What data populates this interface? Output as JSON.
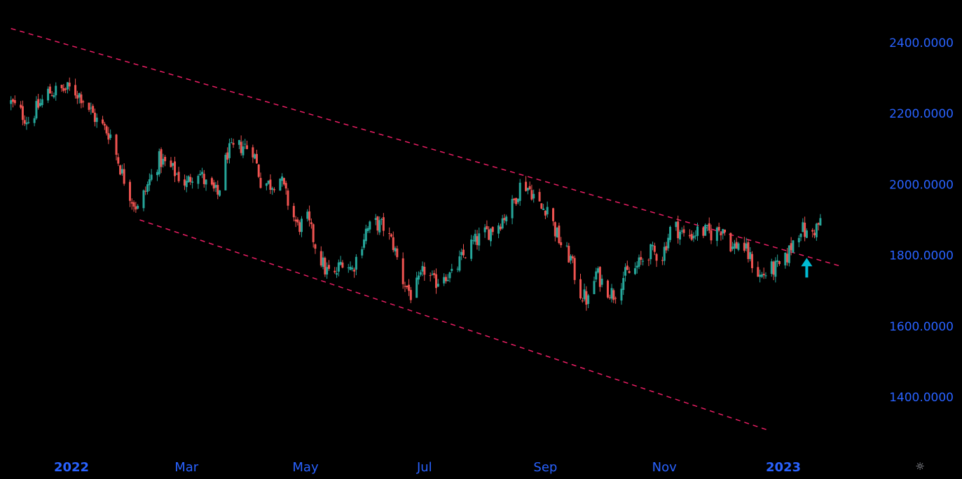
{
  "colors": {
    "background": "#000000",
    "up": "#26a69a",
    "down": "#ef5350",
    "trendline": "#e91e63",
    "axis_text": "#2962ff",
    "marker": "#00bcd4"
  },
  "chart_data": {
    "type": "candlestick",
    "title": "",
    "xlabel": "",
    "ylabel": "",
    "ylim": [
      1290,
      2450
    ],
    "y_ticks": [
      "2400.0000",
      "2200.0000",
      "2000.0000",
      "1800.0000",
      "1600.0000",
      "1400.0000"
    ],
    "y_tick_values": [
      2400,
      2200,
      2000,
      1800,
      1600,
      1400
    ],
    "x_ticks": [
      {
        "label": "2022",
        "date": "2022-01-01",
        "bold": true
      },
      {
        "label": "Mar",
        "date": "2022-03-01",
        "bold": false
      },
      {
        "label": "May",
        "date": "2022-05-01",
        "bold": false
      },
      {
        "label": "Jul",
        "date": "2022-07-01",
        "bold": false
      },
      {
        "label": "Sep",
        "date": "2022-09-01",
        "bold": false
      },
      {
        "label": "Nov",
        "date": "2022-11-01",
        "bold": false
      },
      {
        "label": "2023",
        "date": "2023-01-01",
        "bold": true
      }
    ],
    "price_path": [
      [
        "2021-12-01",
        2230
      ],
      [
        "2021-12-10",
        2180
      ],
      [
        "2021-12-20",
        2260
      ],
      [
        "2022-01-01",
        2270
      ],
      [
        "2022-01-06",
        2250
      ],
      [
        "2022-01-14",
        2180
      ],
      [
        "2022-01-21",
        2140
      ],
      [
        "2022-01-27",
        2030
      ],
      [
        "2022-02-01",
        1960
      ],
      [
        "2022-02-04",
        1930
      ],
      [
        "2022-02-10",
        2010
      ],
      [
        "2022-02-15",
        2070
      ],
      [
        "2022-02-22",
        2040
      ],
      [
        "2022-03-01",
        2000
      ],
      [
        "2022-03-06",
        2050
      ],
      [
        "2022-03-11",
        2000
      ],
      [
        "2022-03-17",
        1970
      ],
      [
        "2022-03-22",
        2090
      ],
      [
        "2022-03-30",
        2110
      ],
      [
        "2022-04-04",
        2100
      ],
      [
        "2022-04-08",
        2010
      ],
      [
        "2022-04-13",
        2000
      ],
      [
        "2022-04-18",
        2020
      ],
      [
        "2022-04-22",
        1950
      ],
      [
        "2022-04-27",
        1880
      ],
      [
        "2022-05-02",
        1900
      ],
      [
        "2022-05-06",
        1830
      ],
      [
        "2022-05-11",
        1760
      ],
      [
        "2022-05-16",
        1740
      ],
      [
        "2022-05-20",
        1790
      ],
      [
        "2022-05-25",
        1760
      ],
      [
        "2022-06-01",
        1870
      ],
      [
        "2022-06-06",
        1890
      ],
      [
        "2022-06-10",
        1880
      ],
      [
        "2022-06-15",
        1830
      ],
      [
        "2022-06-20",
        1730
      ],
      [
        "2022-06-24",
        1690
      ],
      [
        "2022-06-28",
        1720
      ],
      [
        "2022-07-01",
        1760
      ],
      [
        "2022-07-06",
        1720
      ],
      [
        "2022-07-11",
        1750
      ],
      [
        "2022-07-15",
        1740
      ],
      [
        "2022-07-20",
        1790
      ],
      [
        "2022-07-25",
        1830
      ],
      [
        "2022-08-01",
        1860
      ],
      [
        "2022-08-08",
        1890
      ],
      [
        "2022-08-15",
        1940
      ],
      [
        "2022-08-20",
        2010
      ],
      [
        "2022-08-25",
        1980
      ],
      [
        "2022-08-30",
        1930
      ],
      [
        "2022-09-02",
        1940
      ],
      [
        "2022-09-06",
        1870
      ],
      [
        "2022-09-10",
        1820
      ],
      [
        "2022-09-14",
        1790
      ],
      [
        "2022-09-18",
        1700
      ],
      [
        "2022-09-23",
        1670
      ],
      [
        "2022-09-27",
        1750
      ],
      [
        "2022-10-02",
        1710
      ],
      [
        "2022-10-06",
        1690
      ],
      [
        "2022-10-11",
        1740
      ],
      [
        "2022-10-17",
        1760
      ],
      [
        "2022-10-24",
        1810
      ],
      [
        "2022-10-31",
        1800
      ],
      [
        "2022-11-05",
        1890
      ],
      [
        "2022-11-12",
        1850
      ],
      [
        "2022-11-19",
        1870
      ],
      [
        "2022-11-26",
        1860
      ],
      [
        "2022-12-01",
        1880
      ],
      [
        "2022-12-06",
        1820
      ],
      [
        "2022-12-10",
        1840
      ],
      [
        "2022-12-15",
        1790
      ],
      [
        "2022-12-20",
        1740
      ],
      [
        "2022-12-26",
        1760
      ],
      [
        "2023-01-01",
        1770
      ],
      [
        "2023-01-06",
        1840
      ],
      [
        "2023-01-10",
        1880
      ],
      [
        "2023-01-14",
        1850
      ],
      [
        "2023-01-18",
        1880
      ],
      [
        "2023-01-20",
        1890
      ]
    ],
    "trendlines": [
      {
        "style": "dashed",
        "points": [
          [
            "2021-12-01",
            2440
          ],
          [
            "2023-01-30",
            1770
          ]
        ]
      },
      {
        "style": "dashed",
        "points": [
          [
            "2022-02-05",
            1900
          ],
          [
            "2022-12-25",
            1305
          ]
        ]
      }
    ],
    "annotations": [
      {
        "type": "arrow-up",
        "date": "2023-01-13",
        "value": 1765
      }
    ]
  }
}
